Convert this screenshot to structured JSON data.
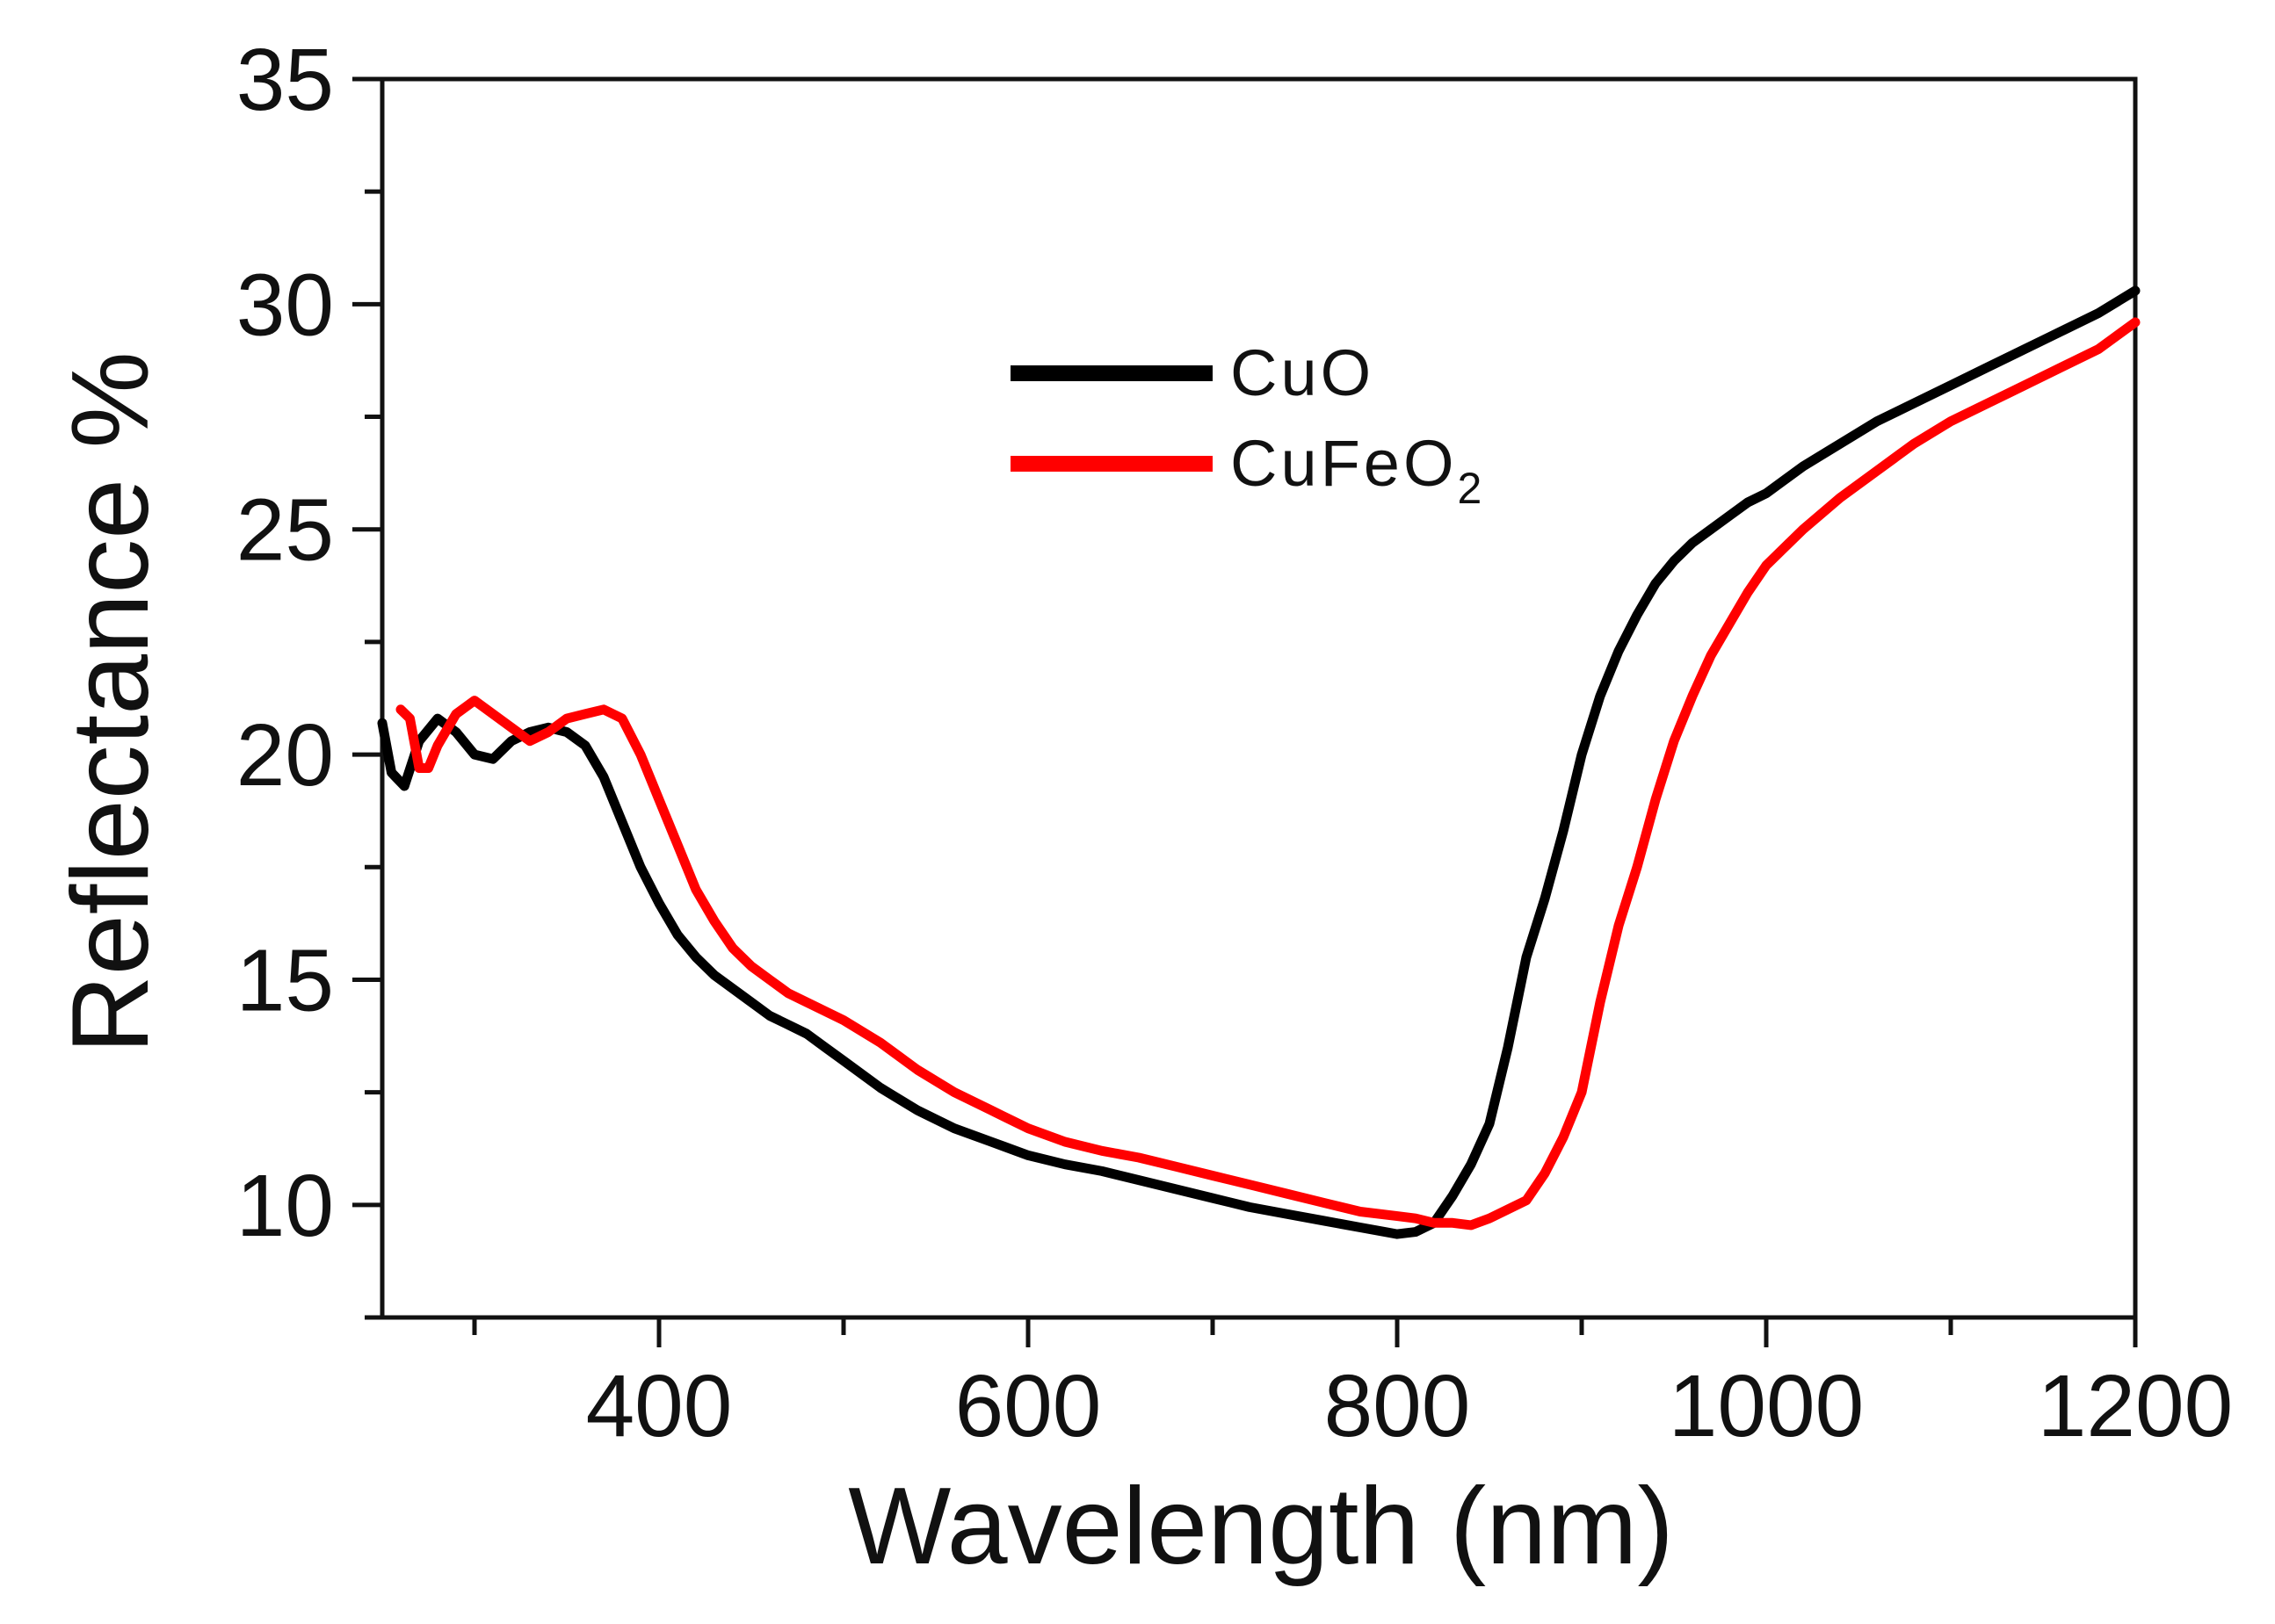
{
  "chart_data": {
    "type": "line",
    "title": "",
    "xlabel": "Wavelength (nm)",
    "ylabel": "Reflectance %",
    "xlim": [
      250,
      1200
    ],
    "ylim": [
      7.5,
      35
    ],
    "xticks": [
      400,
      600,
      800,
      1000,
      1200
    ],
    "xtick_labels": [
      "400",
      "600",
      "800",
      "1000",
      "1200"
    ],
    "yticks": [
      10,
      15,
      20,
      25,
      30,
      35
    ],
    "ytick_labels": [
      "10",
      "15",
      "20",
      "25",
      "30",
      "35"
    ],
    "grid": false,
    "legend": {
      "position": "top-center",
      "entries": [
        {
          "label": "CuO",
          "color": "#000000"
        },
        {
          "label_main": "CuFeO",
          "label_sub": "2",
          "color": "#ff0000"
        }
      ]
    },
    "series": [
      {
        "name": "CuO",
        "color": "#000000",
        "x": [
          250,
          255,
          262,
          270,
          280,
          290,
          300,
          310,
          320,
          330,
          340,
          350,
          360,
          370,
          380,
          390,
          400,
          410,
          420,
          430,
          440,
          450,
          460,
          470,
          480,
          490,
          500,
          520,
          540,
          560,
          580,
          600,
          620,
          640,
          660,
          680,
          700,
          720,
          740,
          760,
          780,
          800,
          810,
          820,
          830,
          840,
          850,
          860,
          870,
          880,
          890,
          900,
          910,
          920,
          930,
          940,
          950,
          960,
          970,
          980,
          990,
          1000,
          1020,
          1040,
          1060,
          1080,
          1100,
          1120,
          1140,
          1160,
          1180,
          1200
        ],
        "y": [
          20.7,
          19.6,
          19.3,
          20.3,
          20.8,
          20.5,
          20.0,
          19.9,
          20.3,
          20.5,
          20.6,
          20.5,
          20.2,
          19.5,
          18.5,
          17.5,
          16.7,
          16.0,
          15.5,
          15.1,
          14.8,
          14.5,
          14.2,
          14.0,
          13.8,
          13.5,
          13.2,
          12.6,
          12.1,
          11.7,
          11.4,
          11.1,
          10.9,
          10.75,
          10.55,
          10.35,
          10.15,
          9.95,
          9.8,
          9.65,
          9.5,
          9.35,
          9.4,
          9.6,
          10.2,
          10.9,
          11.8,
          13.5,
          15.5,
          16.8,
          18.3,
          20.0,
          21.3,
          22.3,
          23.1,
          23.8,
          24.3,
          24.7,
          25.0,
          25.3,
          25.6,
          25.8,
          26.4,
          26.9,
          27.4,
          27.8,
          28.2,
          28.6,
          29.0,
          29.4,
          29.8,
          30.3
        ]
      },
      {
        "name": "CuFeO2",
        "color": "#ff0000",
        "x": [
          260,
          265,
          270,
          275,
          280,
          290,
          300,
          310,
          320,
          330,
          340,
          350,
          360,
          370,
          380,
          390,
          400,
          410,
          420,
          430,
          440,
          450,
          460,
          470,
          480,
          490,
          500,
          520,
          540,
          560,
          580,
          600,
          620,
          640,
          660,
          680,
          700,
          720,
          740,
          760,
          780,
          800,
          810,
          820,
          830,
          840,
          850,
          860,
          870,
          880,
          890,
          900,
          910,
          920,
          930,
          940,
          950,
          960,
          970,
          980,
          990,
          1000,
          1020,
          1040,
          1060,
          1080,
          1100,
          1120,
          1140,
          1160,
          1180,
          1200
        ],
        "y": [
          21.0,
          20.8,
          19.7,
          19.7,
          20.2,
          20.9,
          21.2,
          20.9,
          20.6,
          20.3,
          20.5,
          20.8,
          20.9,
          21.0,
          20.8,
          20.0,
          19.0,
          18.0,
          17.0,
          16.3,
          15.7,
          15.3,
          15.0,
          14.7,
          14.5,
          14.3,
          14.1,
          13.6,
          13.0,
          12.5,
          12.1,
          11.7,
          11.4,
          11.2,
          11.05,
          10.85,
          10.65,
          10.45,
          10.25,
          10.05,
          9.85,
          9.75,
          9.7,
          9.6,
          9.6,
          9.55,
          9.7,
          9.9,
          10.1,
          10.7,
          11.5,
          12.5,
          14.5,
          16.2,
          17.5,
          19.0,
          20.3,
          21.3,
          22.2,
          22.9,
          23.6,
          24.2,
          25.0,
          25.7,
          26.3,
          26.9,
          27.4,
          27.8,
          28.2,
          28.6,
          29.0,
          29.6
        ]
      }
    ]
  }
}
